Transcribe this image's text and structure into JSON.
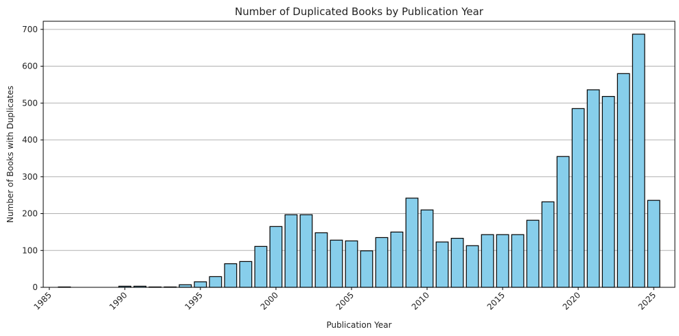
{
  "chart_data": {
    "type": "bar",
    "title": "Number of Duplicated Books by Publication Year",
    "xlabel": "Publication Year",
    "ylabel": "Number of Books with Duplicates",
    "x": [
      1986,
      1990,
      1991,
      1992,
      1993,
      1994,
      1995,
      1996,
      1997,
      1998,
      1999,
      2000,
      2001,
      2002,
      2003,
      2004,
      2005,
      2006,
      2007,
      2008,
      2009,
      2010,
      2011,
      2012,
      2013,
      2014,
      2015,
      2016,
      2017,
      2018,
      2019,
      2020,
      2021,
      2022,
      2023,
      2024,
      2025
    ],
    "values": [
      1,
      3,
      3,
      1,
      1,
      7,
      15,
      29,
      64,
      70,
      111,
      165,
      197,
      197,
      148,
      128,
      126,
      99,
      135,
      150,
      242,
      210,
      123,
      133,
      113,
      143,
      143,
      143,
      182,
      232,
      355,
      485,
      536,
      518,
      580,
      687,
      236
    ],
    "xlim": [
      1984.6,
      2026.4
    ],
    "ylim": [
      0,
      722
    ],
    "xticks": [
      1985,
      1990,
      1995,
      2000,
      2005,
      2010,
      2015,
      2020,
      2025
    ],
    "yticks": [
      0,
      100,
      200,
      300,
      400,
      500,
      600,
      700
    ],
    "grid": "y-major",
    "bar_color": "#87ceeb",
    "edge_color": "#000000"
  }
}
